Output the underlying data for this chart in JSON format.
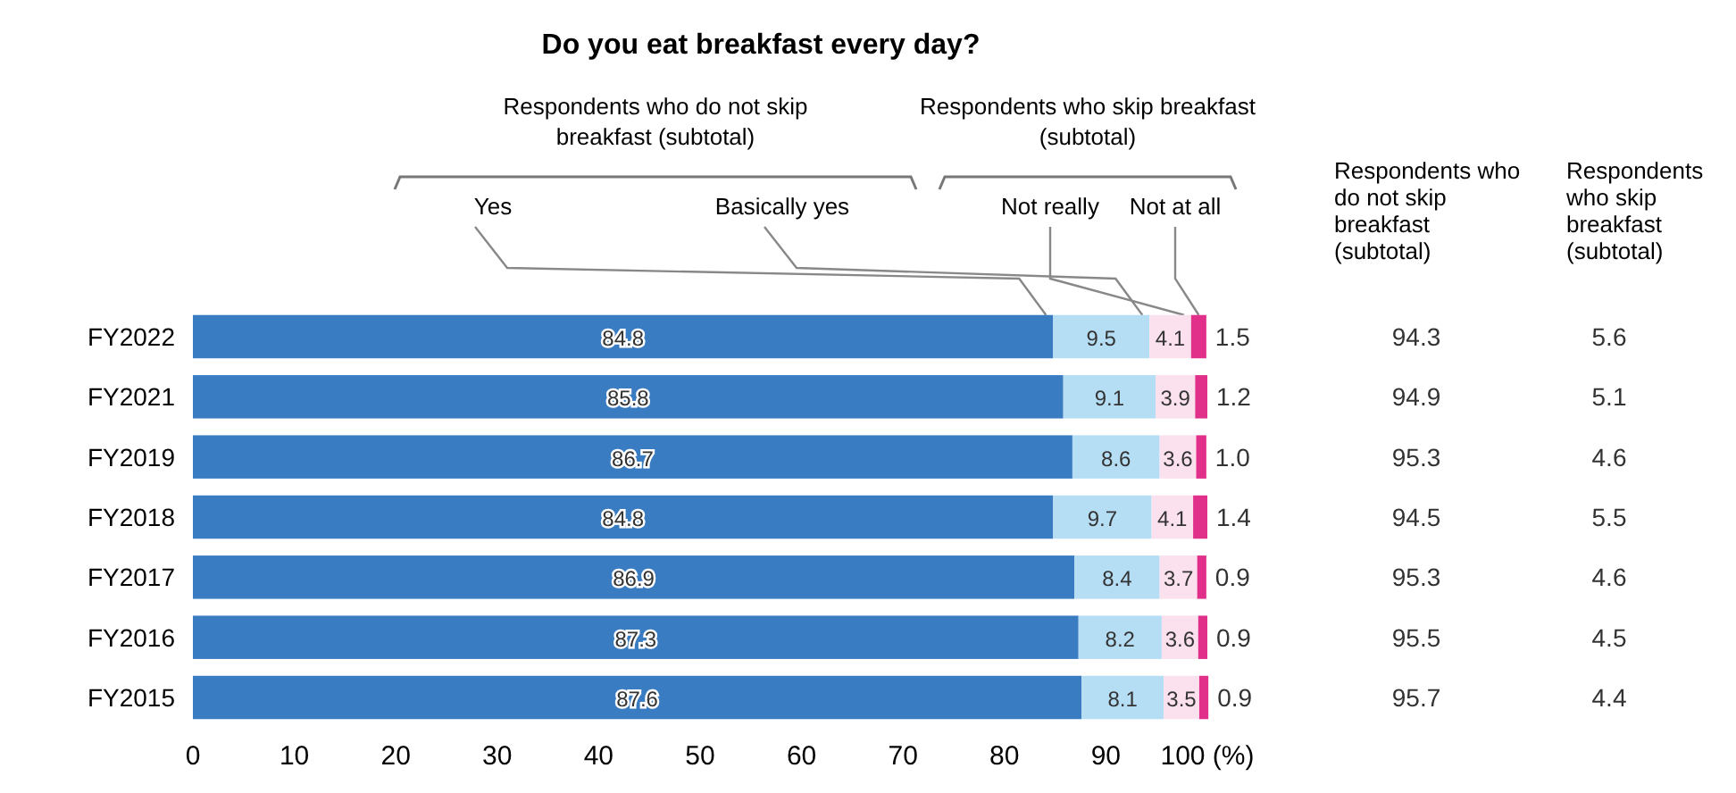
{
  "chart_data": {
    "type": "bar",
    "orientation": "horizontal",
    "stacked": true,
    "title": "Do you eat breakfast every day?",
    "categories": [
      "FY2022",
      "FY2021",
      "FY2019",
      "FY2018",
      "FY2017",
      "FY2016",
      "FY2015"
    ],
    "series": [
      {
        "name": "Yes",
        "color": "#3a7cc2",
        "values": [
          84.8,
          85.8,
          86.7,
          84.8,
          86.9,
          87.3,
          87.6
        ],
        "value_labels": [
          "84.8",
          "85.8",
          "86.7",
          "84.8",
          "86.9",
          "87.3",
          "87.6"
        ]
      },
      {
        "name": "Basically yes",
        "color": "#b5def5",
        "values": [
          9.5,
          9.1,
          8.6,
          9.7,
          8.4,
          8.2,
          8.1
        ],
        "value_labels": [
          "9.5",
          "9.1",
          "8.6",
          "9.7",
          "8.4",
          "8.2",
          "8.1"
        ]
      },
      {
        "name": "Not really",
        "color": "#fbe1ee",
        "values": [
          4.1,
          3.9,
          3.6,
          4.1,
          3.7,
          3.6,
          3.5
        ],
        "value_labels": [
          "4.1",
          "3.9",
          "3.6",
          "4.1",
          "3.7",
          "3.6",
          "3.5"
        ]
      },
      {
        "name": "Not at all",
        "color": "#e0308a",
        "values": [
          1.5,
          1.2,
          1.0,
          1.4,
          0.9,
          0.9,
          0.9
        ],
        "value_labels": [
          "1.5",
          "1.2",
          "1.0",
          "1.4",
          "0.9",
          "0.9",
          "0.9"
        ]
      }
    ],
    "xlim": [
      0,
      100
    ],
    "xticks": [
      0,
      10,
      20,
      30,
      40,
      50,
      60,
      70,
      80,
      90,
      {
        "value": 100,
        "label": "100 (%)"
      }
    ],
    "grid": false,
    "annotations": [
      "Respondents who do not skip breakfast (subtotal)",
      "Respondents who skip breakfast (subtotal)",
      "Respondents who do not skip breakfast (subtotal)",
      "Respondents who skip breakfast (subtotal)",
      "94.3",
      "5.6",
      "94.9",
      "5.1",
      "95.3",
      "4.6",
      "94.5",
      "5.5",
      "95.3",
      "4.6",
      "95.5",
      "4.5",
      "95.7",
      "4.4"
    ]
  }
}
